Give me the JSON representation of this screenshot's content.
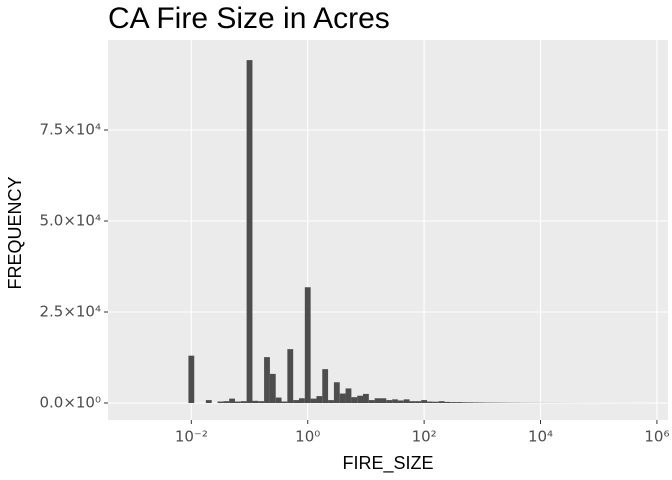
{
  "chart_data": {
    "type": "histogram",
    "title": "CA Fire Size in Acres",
    "x_label": "FIRE_SIZE",
    "y_label": "FREQUENCY",
    "bins": [
      0.00891251,
      0.0112202,
      0.0141254,
      0.0177828,
      0.0223872,
      0.0281838,
      0.0354813,
      0.0446684,
      0.0562341,
      0.0707946,
      0.0891251,
      0.112202,
      0.141254,
      0.177828,
      0.223872,
      0.281838,
      0.354813,
      0.446684,
      0.562341,
      0.707946,
      0.891251,
      1.12202,
      1.41254,
      1.77828,
      2.23872,
      2.81838,
      3.54813,
      4.46684,
      5.62341,
      7.07946,
      8.91251,
      11.2202,
      14.1254,
      17.7828,
      22.3872,
      28.1838,
      35.4813,
      44.6684,
      56.2341,
      70.7946,
      89.1251,
      112.202,
      141.254,
      177.828,
      223.872,
      281.838,
      354.813,
      446.684,
      562.341,
      707.946,
      891.251,
      1122.02,
      1412.54,
      1778.28,
      2238.72,
      2818.38,
      3548.13,
      4466.84,
      5623.41,
      7079.46,
      8912.51,
      11220.2,
      14125.4,
      17782.8,
      22387.2,
      28183.8,
      35481.3,
      44668.4,
      56234.1,
      70794.6,
      89125.1,
      112202,
      141254,
      177828,
      223872,
      281838,
      354813,
      446684,
      562341,
      707946
    ],
    "counts": [
      13000,
      0,
      0,
      800,
      0,
      400,
      500,
      1200,
      400,
      500,
      94200,
      600,
      500,
      12600,
      8000,
      1500,
      400,
      14800,
      800,
      1300,
      31800,
      1200,
      1900,
      9300,
      800,
      5700,
      2600,
      4000,
      1600,
      2000,
      2500,
      800,
      1300,
      1300,
      800,
      1000,
      700,
      1000,
      500,
      500,
      800,
      400,
      350,
      500,
      300,
      250,
      250,
      200,
      180,
      150,
      130,
      110,
      100,
      90,
      80,
      70,
      60,
      50,
      45,
      40,
      35,
      30,
      28,
      25,
      22,
      20,
      18,
      15,
      13,
      11,
      10,
      8,
      7,
      6,
      5,
      4,
      3,
      2,
      2
    ],
    "color": "#4d4d4d",
    "x_log_scale": true,
    "xlim": [
      0.00037,
      1550000
    ],
    "xticks": [
      {
        "value": 0.01,
        "label": "10⁻²"
      },
      {
        "value": 1,
        "label": "10⁰"
      },
      {
        "value": 100,
        "label": "10²"
      },
      {
        "value": 10000,
        "label": "10⁴"
      },
      {
        "value": 1000000,
        "label": "10⁶"
      }
    ],
    "ylim": [
      -4670,
      99725
    ],
    "yticks": [
      {
        "value": 0,
        "label": "0.0×10⁰"
      },
      {
        "value": 25000,
        "label": "2.5×10⁴"
      },
      {
        "value": 50000,
        "label": "5.0×10⁴"
      },
      {
        "value": 75000,
        "label": "7.5×10⁴"
      }
    ],
    "grid": true
  }
}
